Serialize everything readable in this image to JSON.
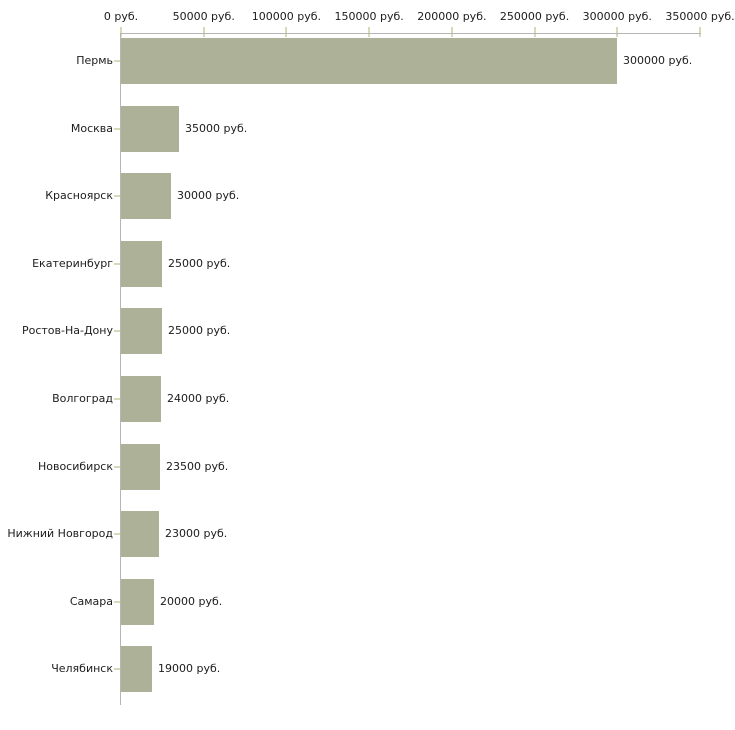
{
  "chart_data": {
    "type": "bar",
    "orientation": "horizontal",
    "title": "",
    "xlabel": "",
    "ylabel": "",
    "categories": [
      "Пермь",
      "Москва",
      "Красноярск",
      "Екатеринбург",
      "Ростов-На-Дону",
      "Волгоград",
      "Новосибирск",
      "Нижний Новгород",
      "Самара",
      "Челябинск"
    ],
    "values": [
      300000,
      35000,
      30000,
      25000,
      25000,
      24000,
      23500,
      23000,
      20000,
      19000
    ],
    "value_labels": [
      "300000 руб.",
      "35000 руб.",
      "30000 руб.",
      "25000 руб.",
      "25000 руб.",
      "24000 руб.",
      "23500 руб.",
      "23000 руб.",
      "20000 руб.",
      "19000 руб."
    ],
    "x_axis": {
      "position": "top",
      "xlim": [
        0,
        350000
      ],
      "ticks": [
        0,
        50000,
        100000,
        150000,
        200000,
        250000,
        300000,
        350000
      ],
      "tick_labels": [
        "0 руб.",
        "50000 руб.",
        "100000 руб.",
        "150000 руб.",
        "200000 руб.",
        "250000 руб.",
        "300000 руб.",
        "350000 руб."
      ]
    },
    "grid": false,
    "legend": null,
    "colors": {
      "bar": "#acb197",
      "axis_line": "#b5b5b5",
      "tick_mark": "#d9d9b8",
      "text": "#1c1c1c",
      "background": "#ffffff"
    }
  }
}
